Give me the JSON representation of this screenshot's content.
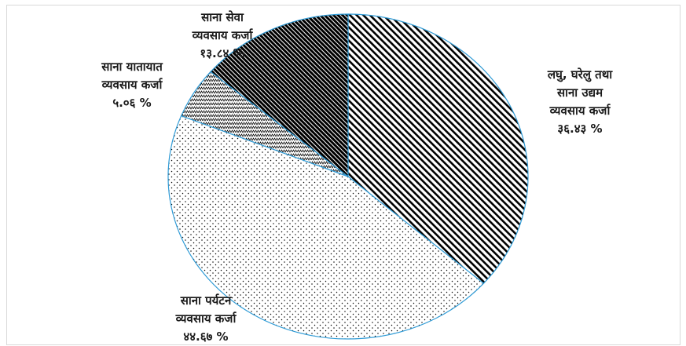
{
  "chart_data": {
    "type": "pie",
    "title": "",
    "start_angle_deg": 0,
    "direction": "clockwise",
    "slices": [
      {
        "label_lines": [
          "लघु, घरेलु तथा",
          "साना उद्यम",
          "व्यवसाय कर्जा"
        ],
        "value_text": "३६.४३ %",
        "value": 36.43,
        "pattern": "diag-lines",
        "fill_color": "#000000"
      },
      {
        "label_lines": [
          "साना पर्यटन",
          "व्यवसाय कर्जा"
        ],
        "value_text": "४४.६७ %",
        "value": 44.67,
        "pattern": "dots",
        "fill_color": "#000000"
      },
      {
        "label_lines": [
          "साना यातायात",
          "व्यवसाय कर्जा"
        ],
        "value_text": "५.०६ %",
        "value": 5.06,
        "pattern": "zigzag",
        "fill_color": "#000000"
      },
      {
        "label_lines": [
          "साना सेवा",
          "व्यवसाय कर्जा"
        ],
        "value_text": "१३.८४ %",
        "value": 13.84,
        "pattern": "dense-diag",
        "fill_color": "#000000"
      }
    ],
    "legend": "none",
    "slice_edge_color": "#2f9bd6"
  }
}
